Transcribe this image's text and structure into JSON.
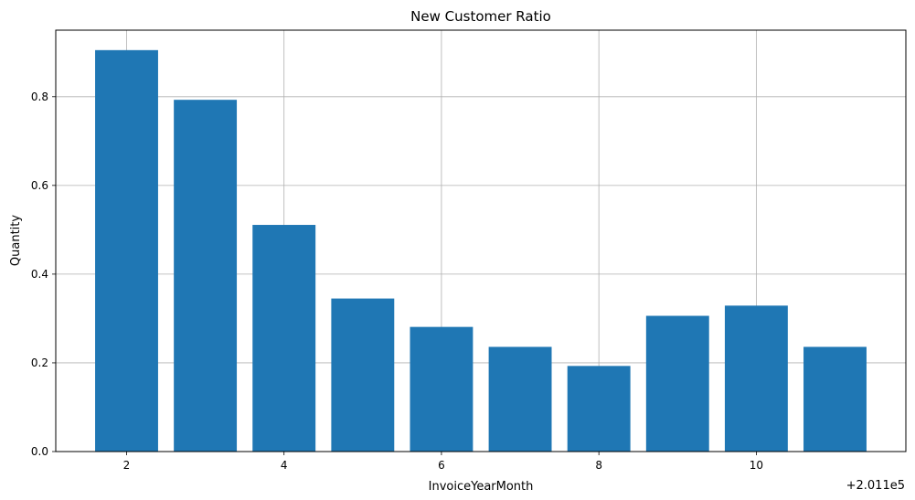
{
  "chart_data": {
    "type": "bar",
    "title": "New Customer Ratio",
    "xlabel": "InvoiceYearMonth",
    "ylabel": "Quantity",
    "x_offset_label": "+2.011e5",
    "x": [
      2,
      3,
      4,
      5,
      6,
      7,
      8,
      9,
      10,
      11
    ],
    "values": [
      0.905,
      0.793,
      0.511,
      0.345,
      0.281,
      0.236,
      0.193,
      0.306,
      0.329,
      0.236
    ],
    "xticks": [
      2,
      4,
      6,
      8,
      10
    ],
    "xtick_labels": [
      "2",
      "4",
      "6",
      "8",
      "10"
    ],
    "yticks": [
      0.0,
      0.2,
      0.4,
      0.6,
      0.8
    ],
    "ytick_labels": [
      "0.0",
      "0.2",
      "0.4",
      "0.6",
      "0.8"
    ],
    "xlim": [
      1.1,
      11.9
    ],
    "ylim": [
      0,
      0.95
    ],
    "grid": true,
    "colors": {
      "bar": "#1f77b4",
      "grid": "#b0b0b0",
      "axis": "#000000"
    }
  }
}
